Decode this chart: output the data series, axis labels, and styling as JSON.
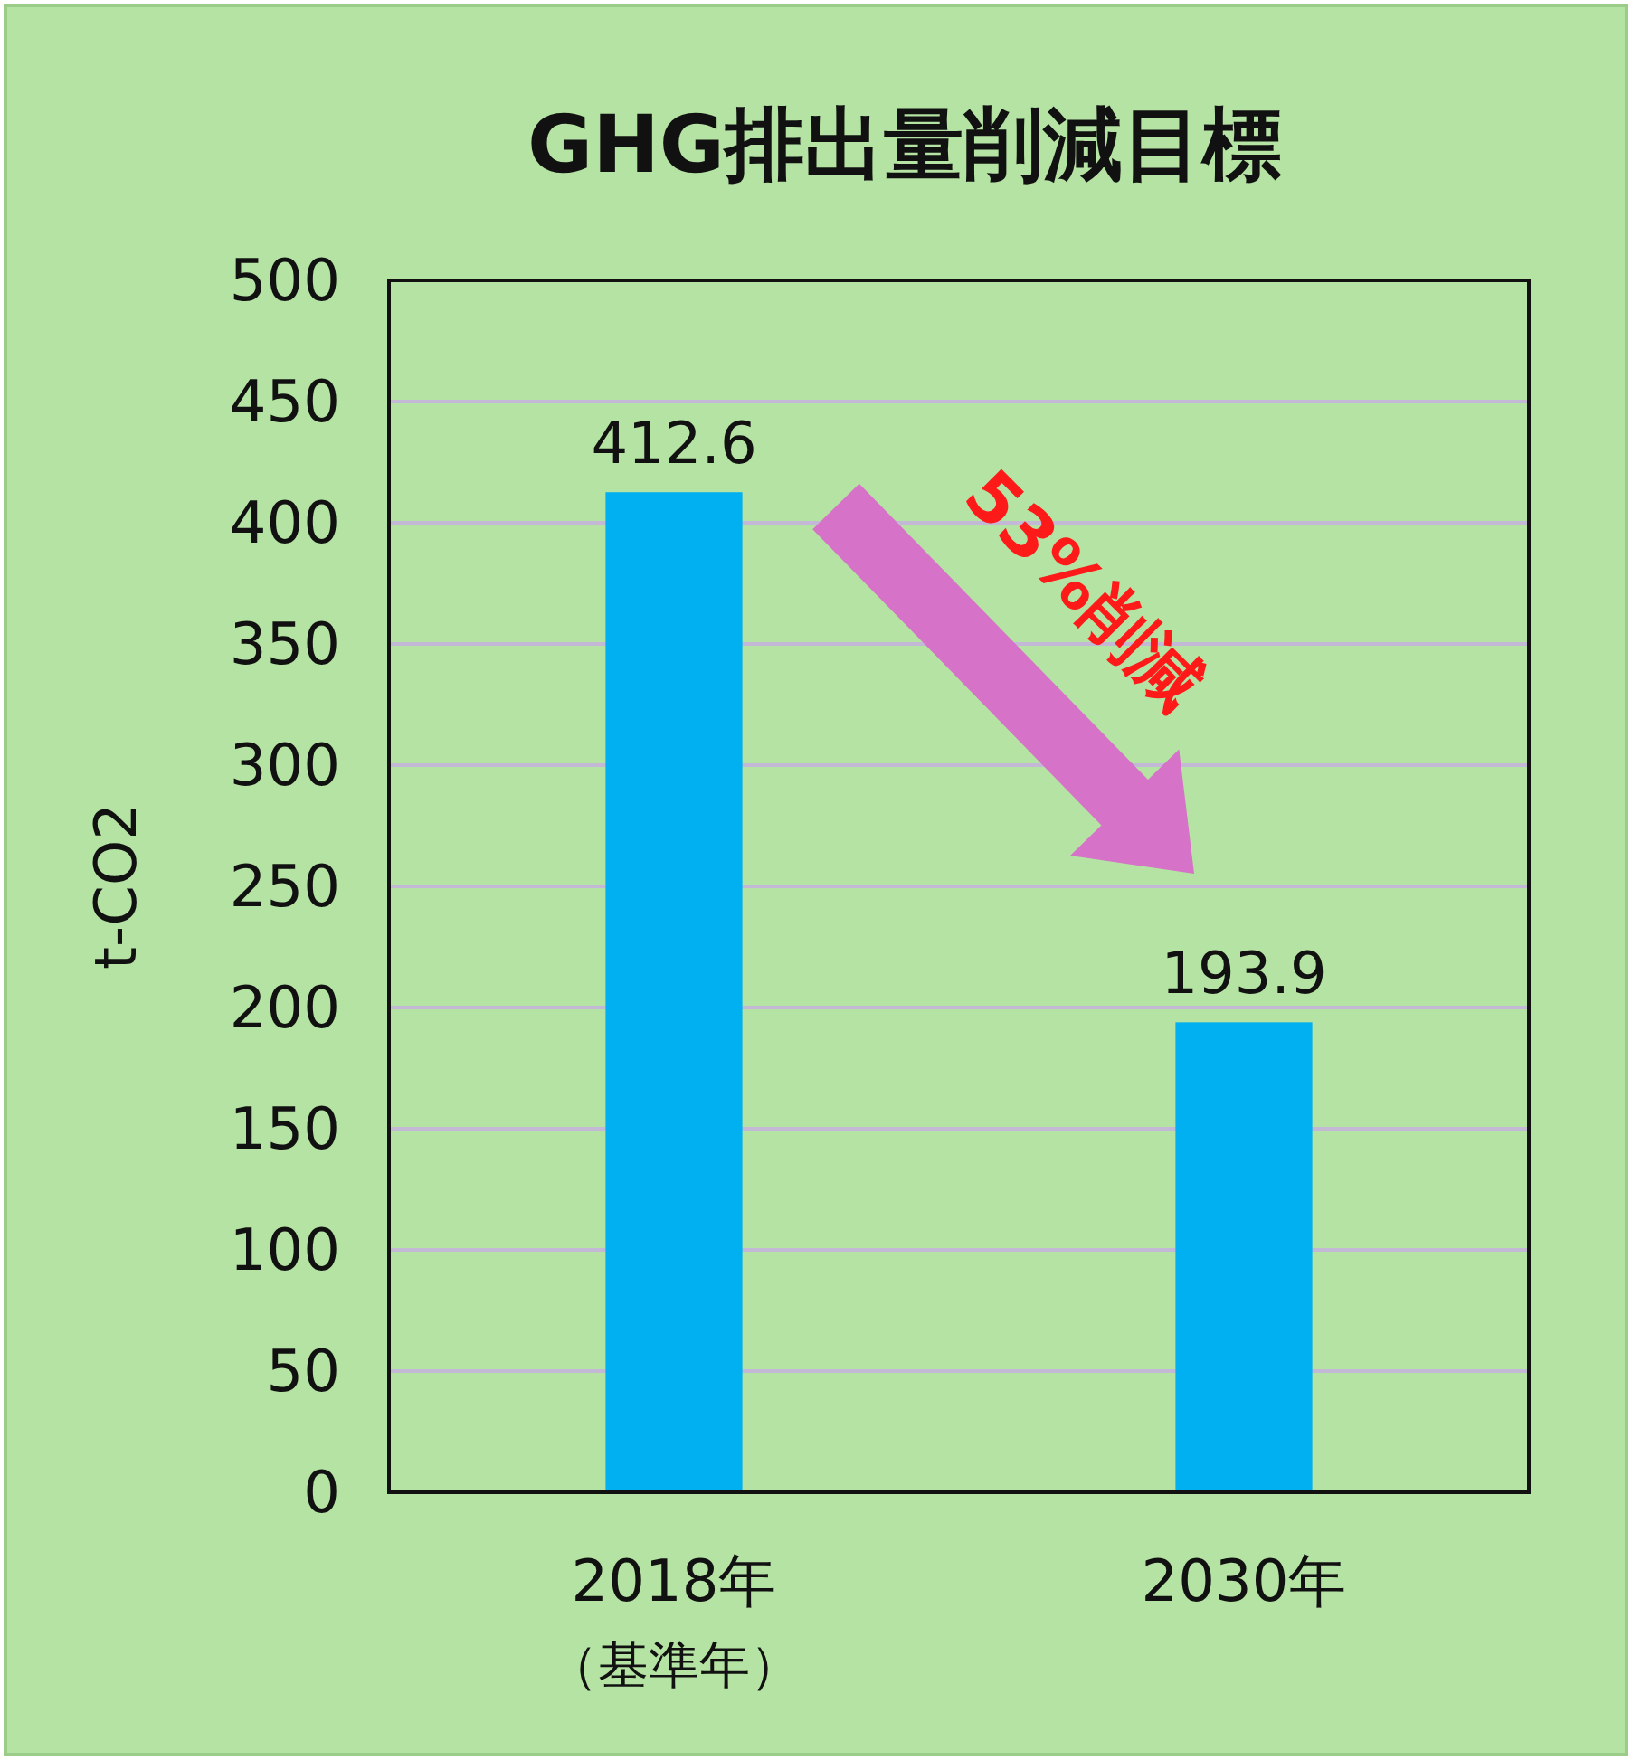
{
  "chart_data": {
    "type": "bar",
    "title": "GHG排出量削減目標",
    "ylabel": "t-CO2",
    "categories": [
      "2018年（基準年）",
      "2030年"
    ],
    "values": [
      412.6,
      193.9
    ],
    "color": "#00b0f0",
    "ylim": [
      0,
      500
    ],
    "yticks": [
      0,
      50,
      100,
      150,
      200,
      250,
      300,
      350,
      400,
      450,
      500
    ],
    "grid": "y",
    "data_labels": true,
    "annotations": [
      "53%削減"
    ]
  }
}
